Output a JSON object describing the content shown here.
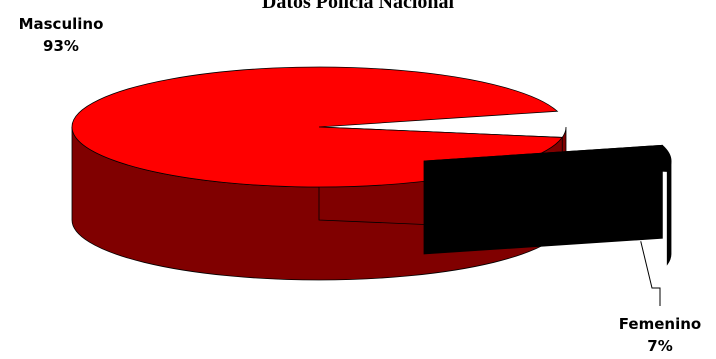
{
  "chart_data": {
    "type": "pie",
    "title": "Datos Policía Nacional",
    "three_d": true,
    "exploded_slice": "Femenino",
    "slices": [
      {
        "name": "Masculino",
        "value": 93,
        "label": "93%",
        "color": "#ff0000",
        "side_color": "#800000"
      },
      {
        "name": "Femenino",
        "value": 7,
        "label": "7%",
        "color": "#000000",
        "side_color": "#000000"
      }
    ]
  }
}
